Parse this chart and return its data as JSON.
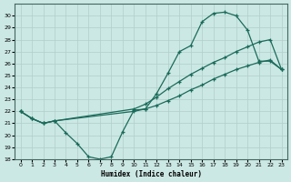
{
  "xlabel": "Humidex (Indice chaleur)",
  "xlim": [
    -0.5,
    23.5
  ],
  "ylim": [
    18,
    31
  ],
  "yticks": [
    18,
    19,
    20,
    21,
    22,
    23,
    24,
    25,
    26,
    27,
    28,
    29,
    30
  ],
  "xticks": [
    0,
    1,
    2,
    3,
    4,
    5,
    6,
    7,
    8,
    9,
    10,
    11,
    12,
    13,
    14,
    15,
    16,
    17,
    18,
    19,
    20,
    21,
    22,
    23
  ],
  "background_color": "#cce8e4",
  "grid_color": "#b0ceca",
  "line_color": "#1a6b5a",
  "line1_x": [
    0,
    1,
    2,
    3,
    4,
    5,
    6,
    7,
    8,
    9,
    10,
    11,
    12,
    13,
    14,
    15,
    16,
    17,
    18,
    19,
    20,
    21,
    22,
    23
  ],
  "line1_y": [
    22,
    21.4,
    21.0,
    21.2,
    20.2,
    19.3,
    18.2,
    18.0,
    18.2,
    20.3,
    22.1,
    22.2,
    23.5,
    25.2,
    27.0,
    27.5,
    29.5,
    30.2,
    30.3,
    30.0,
    28.8,
    26.2,
    26.2,
    25.5
  ],
  "line2_x": [
    0,
    1,
    2,
    3,
    10,
    11,
    12,
    13,
    14,
    15,
    16,
    17,
    18,
    19,
    20,
    21,
    22,
    23
  ],
  "line2_y": [
    22,
    21.4,
    21.0,
    21.2,
    22.2,
    22.6,
    23.2,
    23.9,
    24.5,
    25.1,
    25.6,
    26.1,
    26.5,
    27.0,
    27.4,
    27.8,
    28.0,
    25.5
  ],
  "line3_x": [
    0,
    1,
    2,
    3,
    10,
    11,
    12,
    13,
    14,
    15,
    16,
    17,
    18,
    19,
    20,
    21,
    22,
    23
  ],
  "line3_y": [
    22,
    21.4,
    21.0,
    21.2,
    22.0,
    22.2,
    22.5,
    22.9,
    23.3,
    23.8,
    24.2,
    24.7,
    25.1,
    25.5,
    25.8,
    26.1,
    26.3,
    25.5
  ]
}
